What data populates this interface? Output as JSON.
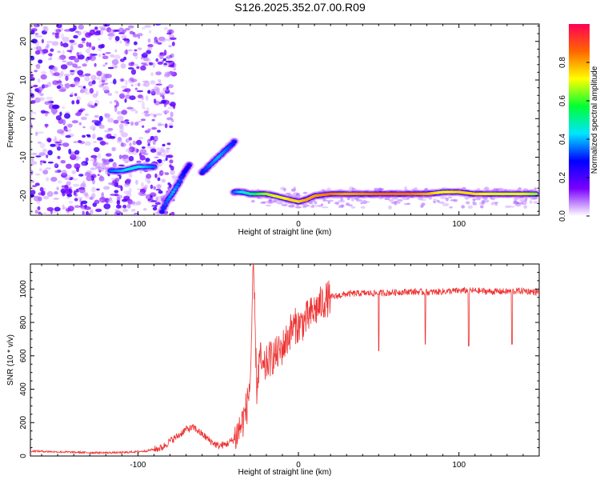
{
  "title": "S126.2025.352.07.00.R09",
  "colors": {
    "snr_line": "#ee3333",
    "frame": "#000000",
    "colorbar_stops": [
      "#ffffff",
      "#7b00ff",
      "#0000ff",
      "#00e5ff",
      "#00ff33",
      "#ffff00",
      "#ff6600",
      "#ff0055"
    ]
  },
  "chart_data": [
    {
      "type": "heatmap",
      "xlabel": "Height of straight line (km)",
      "ylabel": "Frequency (Hz)",
      "xlim": [
        -167,
        150
      ],
      "ylim": [
        -25,
        24.5
      ],
      "xticks": [
        -100,
        0,
        100
      ],
      "xtick_labels": [
        "-100",
        "0",
        "100"
      ],
      "yticks": [
        -20,
        -10,
        0,
        10,
        20
      ],
      "ytick_labels": [
        "-20",
        "-10",
        "0",
        "10",
        "20"
      ],
      "colorbar": {
        "label": "Normalized spectral amplitude",
        "range": [
          0,
          1
        ],
        "ticks": [
          0,
          0.2,
          0.4,
          0.6,
          0.8
        ],
        "tick_labels": [
          "0.0",
          "0.2",
          "0.4",
          "0.6",
          "0.8"
        ]
      },
      "ridge": [
        {
          "segment": 1,
          "x": [
            -117,
            -110,
            -105,
            -100,
            -95,
            -90
          ],
          "y": [
            -13.5,
            -13.5,
            -13,
            -12.5,
            -12.5,
            -12.5
          ],
          "amp": [
            0.35,
            0.4,
            0.45,
            0.45,
            0.4,
            0.35
          ]
        },
        {
          "segment": 2,
          "x": [
            -85,
            -82,
            -78,
            -75,
            -72,
            -68
          ],
          "y": [
            -24,
            -21.5,
            -19,
            -17,
            -14.5,
            -12
          ],
          "amp": [
            0.3,
            0.35,
            0.4,
            0.35,
            0.3,
            0.25
          ]
        },
        {
          "segment": 3,
          "x": [
            -60,
            -55,
            -50,
            -45,
            -40
          ],
          "y": [
            -14,
            -12,
            -10,
            -8,
            -6
          ],
          "amp": [
            0.3,
            0.35,
            0.4,
            0.35,
            0.3
          ]
        },
        {
          "segment": 4,
          "x": [
            -40,
            -35,
            -30,
            -25,
            -20,
            -15,
            -10,
            -5,
            0,
            5,
            10,
            20,
            30,
            50,
            70,
            80,
            90,
            100,
            110,
            120,
            130,
            140,
            148
          ],
          "y": [
            -19,
            -19,
            -19.5,
            -19.5,
            -19.5,
            -20,
            -20.5,
            -21,
            -21.5,
            -21,
            -20,
            -19.5,
            -19.5,
            -19.5,
            -19.5,
            -19.5,
            -19,
            -19,
            -19.5,
            -19.5,
            -19.5,
            -19.5,
            -19.5
          ],
          "amp": [
            0.35,
            0.45,
            0.5,
            0.6,
            0.65,
            0.7,
            0.7,
            0.75,
            0.75,
            0.8,
            0.8,
            0.85,
            0.8,
            0.85,
            0.85,
            0.8,
            0.7,
            0.75,
            0.75,
            0.7,
            0.7,
            0.7,
            0.65
          ]
        }
      ]
    },
    {
      "type": "line",
      "xlabel": "Height of straight line (km)",
      "ylabel": "SNR (10 * v/v)",
      "xlim": [
        -167,
        150
      ],
      "ylim": [
        0,
        1150
      ],
      "xticks": [
        -100,
        0,
        100
      ],
      "xtick_labels": [
        "-100",
        "0",
        "100"
      ],
      "yticks": [
        0,
        200,
        400,
        600,
        800,
        1000
      ],
      "ytick_labels": [
        "0",
        "200",
        "400",
        "600",
        "800",
        "1000"
      ],
      "series": [
        {
          "x": [
            -167,
            -150,
            -130,
            -110,
            -95,
            -85,
            -80,
            -75,
            -70,
            -65,
            -60,
            -55,
            -50,
            -45,
            -40,
            -35,
            -32,
            -30,
            -28,
            -26,
            -24,
            -22,
            -20,
            -18,
            -15,
            -12,
            -10,
            -7,
            -5,
            -2,
            0,
            3,
            5,
            8,
            10,
            13,
            15,
            18,
            20,
            25,
            30,
            40,
            50,
            60,
            70,
            80,
            90,
            100,
            110,
            120,
            130,
            140,
            150
          ],
          "y": [
            30,
            25,
            20,
            20,
            30,
            50,
            90,
            120,
            160,
            170,
            130,
            90,
            60,
            70,
            100,
            200,
            300,
            450,
            1140,
            400,
            600,
            500,
            550,
            580,
            600,
            620,
            650,
            700,
            750,
            780,
            780,
            800,
            820,
            850,
            870,
            900,
            920,
            940,
            950,
            960,
            970,
            975,
            975,
            980,
            985,
            980,
            985,
            990,
            990,
            985,
            985,
            990,
            980
          ]
        }
      ],
      "dips": [
        {
          "x": 50,
          "y": 630
        },
        {
          "x": 79,
          "y": 670
        },
        {
          "x": 106,
          "y": 660
        },
        {
          "x": 133,
          "y": 670
        }
      ]
    }
  ]
}
